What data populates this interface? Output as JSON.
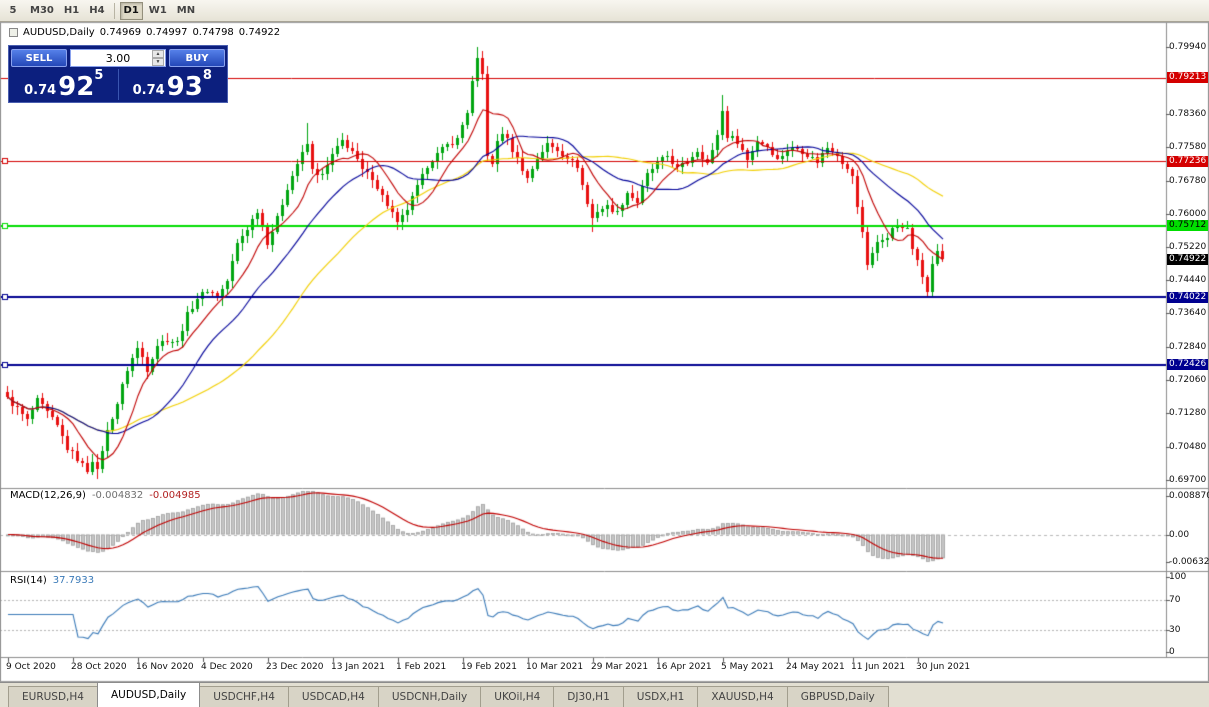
{
  "window": {
    "timeframes": [
      {
        "label": "5"
      },
      {
        "label": "M30"
      },
      {
        "label": "H1"
      },
      {
        "label": "H4"
      },
      {
        "sep": true
      },
      {
        "label": "D1",
        "active": true
      },
      {
        "label": "W1"
      },
      {
        "label": "MN"
      }
    ],
    "tabs": [
      {
        "label": "EURUSD,H4"
      },
      {
        "label": "AUDUSD,Daily",
        "active": true
      },
      {
        "label": "USDCHF,H4"
      },
      {
        "label": "USDCAD,H4"
      },
      {
        "label": "USDCNH,Daily"
      },
      {
        "label": "UKOil,H4"
      },
      {
        "label": "DJ30,H1"
      },
      {
        "label": "USDX,H1"
      },
      {
        "label": "XAUUSD,H4"
      },
      {
        "label": "GBPUSD,Daily"
      }
    ]
  },
  "chart_header": {
    "symbol": "AUDUSD,Daily",
    "open": "0.74969",
    "high": "0.74997",
    "low": "0.74798",
    "close": "0.74922"
  },
  "trade_panel": {
    "sell_label": "SELL",
    "buy_label": "BUY",
    "lot": "3.00",
    "sell_price": {
      "prefix": "0.74",
      "big": "92",
      "pip": "5"
    },
    "buy_price": {
      "prefix": "0.74",
      "big": "93",
      "pip": "8"
    },
    "colors": {
      "panel_bg": "#0c1f7e",
      "button": "#2448b8"
    }
  },
  "indicators": {
    "macd": {
      "name": "MACD(12,26,9)",
      "value_main": "-0.004832",
      "value_signal": "-0.004985",
      "params": {
        "fast": 12,
        "slow": 26,
        "signal": 9
      },
      "axis": [
        {
          "value": 0.00887,
          "text": "0.008870"
        },
        {
          "value": 0,
          "text": "0.00"
        },
        {
          "value": -0.00632,
          "text": "-0.00632"
        }
      ],
      "colors": {
        "histogram": "#c6c6c6",
        "histogram_border": "#9a9a9a",
        "signal": "#c00000"
      }
    },
    "rsi": {
      "name": "RSI(14)",
      "value": "37.7933",
      "period": 14,
      "axis": [
        {
          "value": 100,
          "text": "100"
        },
        {
          "value": 70,
          "text": "70"
        },
        {
          "value": 30,
          "text": "30"
        },
        {
          "value": 0,
          "text": "0"
        }
      ],
      "levels": [
        70,
        30
      ],
      "color": "#3a7ab8"
    }
  },
  "chart_data": {
    "type": "candlestick",
    "symbol": "AUDUSD",
    "timeframe": "Daily",
    "bars": 188,
    "visible_range": {
      "price_min": 0.697,
      "price_max": 0.7994,
      "date_start": "9 Oct 2020",
      "date_end": "30 Jun 2021"
    },
    "price_ticks": [
      "0.79940",
      "0.78360",
      "0.77580",
      "0.76780",
      "0.76000",
      "0.75220",
      "0.74440",
      "0.73640",
      "0.72840",
      "0.72060",
      "0.71280",
      "0.70480",
      "0.69700"
    ],
    "hlines": [
      {
        "price": 0.79213,
        "label": "0.79213",
        "color": "#d40000",
        "width": 1,
        "handle": false,
        "text_color": "#ffffff"
      },
      {
        "price": 0.77236,
        "label": "0.77236",
        "color": "#d40000",
        "width": 1,
        "handle": true,
        "text_color": "#ffffff"
      },
      {
        "price": 0.75712,
        "label": "0.75712",
        "color": "#00dd00",
        "width": 2,
        "handle": true,
        "text_color": "#000000"
      },
      {
        "price": 0.74022,
        "label": "0.74022",
        "color": "#000090",
        "width": 2,
        "handle": true,
        "text_color": "#ffffff"
      },
      {
        "price": 0.72426,
        "label": "0.72426",
        "color": "#000090",
        "width": 2,
        "handle": true,
        "text_color": "#ffffff"
      }
    ],
    "current_price": {
      "value": 0.74922,
      "label": "0.74922",
      "bg": "#000000",
      "color": "#ffffff"
    },
    "x_labels": [
      {
        "bar": 0,
        "text": "9 Oct 2020"
      },
      {
        "bar": 13,
        "text": "28 Oct 2020"
      },
      {
        "bar": 26,
        "text": "16 Nov 2020"
      },
      {
        "bar": 39,
        "text": "4 Dec 2020"
      },
      {
        "bar": 52,
        "text": "23 Dec 2020"
      },
      {
        "bar": 65,
        "text": "13 Jan 2021"
      },
      {
        "bar": 78,
        "text": "1 Feb 2021"
      },
      {
        "bar": 91,
        "text": "19 Feb 2021"
      },
      {
        "bar": 104,
        "text": "10 Mar 2021"
      },
      {
        "bar": 117,
        "text": "29 Mar 2021"
      },
      {
        "bar": 130,
        "text": "16 Apr 2021"
      },
      {
        "bar": 143,
        "text": "5 May 2021"
      },
      {
        "bar": 156,
        "text": "24 May 2021"
      },
      {
        "bar": 169,
        "text": "11 Jun 2021"
      },
      {
        "bar": 182,
        "text": "30 Jun 2021"
      }
    ],
    "anchors": [
      [
        0,
        0.7162
      ],
      [
        2,
        0.7138
      ],
      [
        4,
        0.711
      ],
      [
        6,
        0.7158
      ],
      [
        8,
        0.713
      ],
      [
        10,
        0.7098
      ],
      [
        12,
        0.7045
      ],
      [
        14,
        0.702
      ],
      [
        16,
        0.6992
      ],
      [
        17,
        0.7018
      ],
      [
        18,
        0.699
      ],
      [
        19,
        0.7042
      ],
      [
        20,
        0.7085
      ],
      [
        22,
        0.7152
      ],
      [
        24,
        0.7232
      ],
      [
        26,
        0.7282
      ],
      [
        27,
        0.726
      ],
      [
        28,
        0.7232
      ],
      [
        30,
        0.729
      ],
      [
        32,
        0.7302
      ],
      [
        34,
        0.7295
      ],
      [
        36,
        0.7362
      ],
      [
        38,
        0.74
      ],
      [
        40,
        0.742
      ],
      [
        42,
        0.7402
      ],
      [
        44,
        0.744
      ],
      [
        46,
        0.7528
      ],
      [
        48,
        0.7565
      ],
      [
        50,
        0.7608
      ],
      [
        52,
        0.7532
      ],
      [
        54,
        0.7588
      ],
      [
        56,
        0.7662
      ],
      [
        58,
        0.7718
      ],
      [
        60,
        0.7764
      ],
      [
        61,
        0.7702
      ],
      [
        63,
        0.769
      ],
      [
        65,
        0.7738
      ],
      [
        67,
        0.7772
      ],
      [
        69,
        0.7748
      ],
      [
        71,
        0.7702
      ],
      [
        73,
        0.7685
      ],
      [
        75,
        0.7642
      ],
      [
        77,
        0.7602
      ],
      [
        78,
        0.7575
      ],
      [
        80,
        0.761
      ],
      [
        82,
        0.7662
      ],
      [
        84,
        0.7714
      ],
      [
        86,
        0.774
      ],
      [
        88,
        0.7762
      ],
      [
        90,
        0.7775
      ],
      [
        92,
        0.7842
      ],
      [
        93,
        0.791
      ],
      [
        94,
        0.7962
      ],
      [
        95,
        0.7928
      ],
      [
        96,
        0.774
      ],
      [
        97,
        0.7712
      ],
      [
        98,
        0.7772
      ],
      [
        99,
        0.7792
      ],
      [
        100,
        0.7774
      ],
      [
        102,
        0.7728
      ],
      [
        104,
        0.7682
      ],
      [
        106,
        0.7732
      ],
      [
        108,
        0.7764
      ],
      [
        110,
        0.775
      ],
      [
        112,
        0.7734
      ],
      [
        114,
        0.7712
      ],
      [
        116,
        0.7622
      ],
      [
        117,
        0.759
      ],
      [
        118,
        0.7607
      ],
      [
        120,
        0.7617
      ],
      [
        122,
        0.7602
      ],
      [
        124,
        0.765
      ],
      [
        126,
        0.7627
      ],
      [
        128,
        0.7692
      ],
      [
        130,
        0.772
      ],
      [
        132,
        0.7737
      ],
      [
        134,
        0.7707
      ],
      [
        136,
        0.7722
      ],
      [
        138,
        0.775
      ],
      [
        140,
        0.772
      ],
      [
        141,
        0.7747
      ],
      [
        142,
        0.7787
      ],
      [
        143,
        0.7842
      ],
      [
        144,
        0.7784
      ],
      [
        146,
        0.7772
      ],
      [
        148,
        0.7727
      ],
      [
        150,
        0.7772
      ],
      [
        152,
        0.776
      ],
      [
        154,
        0.7728
      ],
      [
        156,
        0.775
      ],
      [
        158,
        0.7754
      ],
      [
        160,
        0.774
      ],
      [
        162,
        0.7724
      ],
      [
        164,
        0.7757
      ],
      [
        166,
        0.7742
      ],
      [
        168,
        0.7702
      ],
      [
        169,
        0.769
      ],
      [
        170,
        0.7612
      ],
      [
        171,
        0.7557
      ],
      [
        172,
        0.7482
      ],
      [
        173,
        0.7507
      ],
      [
        174,
        0.753
      ],
      [
        176,
        0.7547
      ],
      [
        178,
        0.7574
      ],
      [
        179,
        0.7562
      ],
      [
        180,
        0.7567
      ],
      [
        181,
        0.7522
      ],
      [
        182,
        0.7497
      ],
      [
        183,
        0.7447
      ],
      [
        184,
        0.7417
      ],
      [
        185,
        0.7482
      ],
      [
        186,
        0.7512
      ],
      [
        187,
        0.74922
      ]
    ],
    "forced_wicks": [
      {
        "bar": 18,
        "low": 0.6972
      },
      {
        "bar": 60,
        "high": 0.7815
      },
      {
        "bar": 78,
        "low": 0.7562
      },
      {
        "bar": 94,
        "high": 0.7994
      },
      {
        "bar": 117,
        "low": 0.7556
      },
      {
        "bar": 143,
        "high": 0.788
      },
      {
        "bar": 184,
        "low": 0.741
      }
    ],
    "moving_averages": [
      {
        "period": 40,
        "color": "#f2cf00"
      },
      {
        "period": 20,
        "color": "#000099"
      },
      {
        "period": 8,
        "color": "#c00000"
      }
    ],
    "candle_colors": {
      "up": "#00a510",
      "down": "#e81010"
    }
  }
}
